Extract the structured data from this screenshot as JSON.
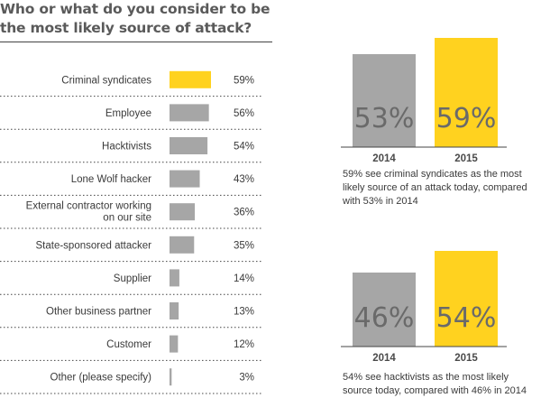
{
  "title": "Who or what do you consider to be the most likely source of attack?",
  "colors": {
    "highlight": "#FFD21F",
    "gray": "#A6A6A6"
  },
  "chart_data": [
    {
      "type": "bar",
      "orientation": "horizontal",
      "title": "Who or what do you consider to be the most likely source of attack?",
      "categories": [
        "Criminal syndicates",
        "Employee",
        "Hacktivists",
        "Lone Wolf hacker",
        "External contractor working on our site",
        "State-sponsored attacker",
        "Supplier",
        "Other business partner",
        "Customer",
        "Other (please specify)"
      ],
      "category_lines": [
        [
          "Criminal syndicates"
        ],
        [
          "Employee"
        ],
        [
          "Hacktivists"
        ],
        [
          "Lone Wolf hacker"
        ],
        [
          "External contractor working",
          "on our site"
        ],
        [
          "State-sponsored attacker"
        ],
        [
          "Supplier"
        ],
        [
          "Other business partner"
        ],
        [
          "Customer"
        ],
        [
          "Other (please specify)"
        ]
      ],
      "values": [
        59,
        56,
        54,
        43,
        36,
        35,
        14,
        13,
        12,
        3
      ],
      "value_labels": [
        "59%",
        "56%",
        "54%",
        "43%",
        "36%",
        "35%",
        "14%",
        "13%",
        "12%",
        "3%"
      ],
      "highlighted": [
        true,
        false,
        false,
        false,
        false,
        false,
        false,
        false,
        false,
        false
      ],
      "unit": "%"
    },
    {
      "type": "bar",
      "categories": [
        "2014",
        "2015"
      ],
      "values": [
        53,
        59
      ],
      "value_labels": [
        "53%",
        "59%"
      ],
      "bar_colors": [
        "#A6A6A6",
        "#FFD21F"
      ],
      "caption": "59% see criminal syndicates as the most likely source of an attack today, compared with 53% in 2014"
    },
    {
      "type": "bar",
      "categories": [
        "2014",
        "2015"
      ],
      "values": [
        46,
        54
      ],
      "value_labels": [
        "46%",
        "54%"
      ],
      "bar_colors": [
        "#A6A6A6",
        "#FFD21F"
      ],
      "caption": "54% see hacktivists as the most likely source today, compared with 46% in 2014"
    }
  ]
}
